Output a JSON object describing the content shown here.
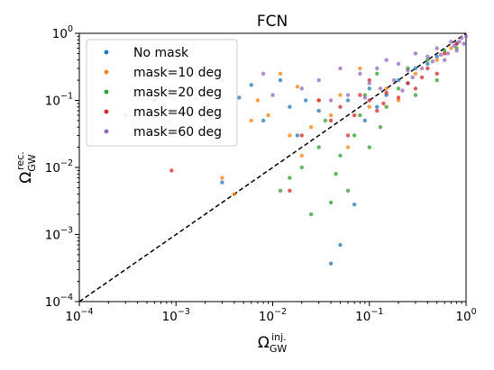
{
  "chart_data": {
    "type": "scatter",
    "title": "FCN",
    "xlabel": {
      "symbol": "Ω",
      "sub": "GW",
      "sup": "inj."
    },
    "ylabel": {
      "symbol": "Ω",
      "sub": "GW",
      "sup": "rec."
    },
    "xscale": "log",
    "yscale": "log",
    "xlim": [
      0.0001,
      1
    ],
    "ylim": [
      0.0001,
      1
    ],
    "grid": false,
    "legend_position": "top-left",
    "x_ticks": [
      {
        "base": "10",
        "exp": "−4"
      },
      {
        "base": "10",
        "exp": "−3"
      },
      {
        "base": "10",
        "exp": "−2"
      },
      {
        "base": "10",
        "exp": "−1"
      },
      {
        "base": "10",
        "exp": "0"
      }
    ],
    "y_ticks": [
      {
        "base": "10",
        "exp": "−4"
      },
      {
        "base": "10",
        "exp": "−3"
      },
      {
        "base": "10",
        "exp": "−2"
      },
      {
        "base": "10",
        "exp": "−1"
      },
      {
        "base": "10",
        "exp": "0"
      }
    ],
    "reference_line": {
      "style": "dashed",
      "color": "#000000",
      "points": [
        [
          0.0001,
          0.0001
        ],
        [
          1,
          1
        ]
      ]
    },
    "series": [
      {
        "name": "No mask",
        "color": "#1f77b4",
        "points": [
          [
            0.0006,
            0.1
          ],
          [
            0.003,
            0.006
          ],
          [
            0.0045,
            0.11
          ],
          [
            0.006,
            0.17
          ],
          [
            0.012,
            0.2
          ],
          [
            0.015,
            0.08
          ],
          [
            0.022,
            0.1
          ],
          [
            0.03,
            0.07
          ],
          [
            0.04,
            0.00037
          ],
          [
            0.05,
            0.0007
          ],
          [
            0.07,
            0.0028
          ],
          [
            0.09,
            0.05
          ],
          [
            0.12,
            0.08
          ],
          [
            0.15,
            0.12
          ],
          [
            0.2,
            0.2
          ],
          [
            0.3,
            0.3
          ],
          [
            0.5,
            0.45
          ],
          [
            0.8,
            0.7
          ],
          [
            0.25,
            0.18
          ],
          [
            0.4,
            0.35
          ],
          [
            0.06,
            0.1
          ],
          [
            0.1,
            0.15
          ],
          [
            0.018,
            0.03
          ],
          [
            0.008,
            0.05
          ]
        ]
      },
      {
        "name": "mask=10 deg",
        "color": "#ff7f0e",
        "points": [
          [
            0.0004,
            0.12
          ],
          [
            0.0012,
            0.03
          ],
          [
            0.002,
            0.05
          ],
          [
            0.003,
            0.007
          ],
          [
            0.004,
            0.004
          ],
          [
            0.006,
            0.05
          ],
          [
            0.009,
            0.06
          ],
          [
            0.012,
            0.25
          ],
          [
            0.015,
            0.03
          ],
          [
            0.02,
            0.015
          ],
          [
            0.025,
            0.04
          ],
          [
            0.03,
            0.1
          ],
          [
            0.04,
            0.06
          ],
          [
            0.05,
            0.12
          ],
          [
            0.06,
            0.02
          ],
          [
            0.08,
            0.3
          ],
          [
            0.1,
            0.08
          ],
          [
            0.15,
            0.15
          ],
          [
            0.2,
            0.1
          ],
          [
            0.3,
            0.25
          ],
          [
            0.5,
            0.4
          ],
          [
            0.7,
            0.6
          ],
          [
            0.018,
            0.16
          ],
          [
            0.007,
            0.1
          ]
        ]
      },
      {
        "name": "mask=20 deg",
        "color": "#2ca02c",
        "points": [
          [
            0.012,
            0.0045
          ],
          [
            0.015,
            0.007
          ],
          [
            0.02,
            0.01
          ],
          [
            0.025,
            0.002
          ],
          [
            0.03,
            0.02
          ],
          [
            0.035,
            0.05
          ],
          [
            0.04,
            0.003
          ],
          [
            0.05,
            0.015
          ],
          [
            0.06,
            0.0045
          ],
          [
            0.07,
            0.03
          ],
          [
            0.08,
            0.06
          ],
          [
            0.09,
            0.12
          ],
          [
            0.1,
            0.02
          ],
          [
            0.12,
            0.25
          ],
          [
            0.15,
            0.08
          ],
          [
            0.2,
            0.15
          ],
          [
            0.25,
            0.3
          ],
          [
            0.3,
            0.12
          ],
          [
            0.4,
            0.4
          ],
          [
            0.5,
            0.2
          ],
          [
            0.6,
            0.55
          ],
          [
            0.8,
            0.6
          ],
          [
            0.045,
            0.008
          ],
          [
            0.13,
            0.04
          ]
        ]
      },
      {
        "name": "mask=40 deg",
        "color": "#d62728",
        "points": [
          [
            0.0009,
            0.009
          ],
          [
            0.015,
            0.0045
          ],
          [
            0.02,
            0.03
          ],
          [
            0.03,
            0.1
          ],
          [
            0.04,
            0.05
          ],
          [
            0.05,
            0.08
          ],
          [
            0.06,
            0.03
          ],
          [
            0.08,
            0.12
          ],
          [
            0.1,
            0.1
          ],
          [
            0.12,
            0.07
          ],
          [
            0.15,
            0.13
          ],
          [
            0.2,
            0.11
          ],
          [
            0.25,
            0.18
          ],
          [
            0.3,
            0.15
          ],
          [
            0.4,
            0.3
          ],
          [
            0.5,
            0.25
          ],
          [
            0.6,
            0.5
          ],
          [
            0.8,
            0.7
          ],
          [
            0.14,
            0.09
          ],
          [
            0.1,
            0.2
          ],
          [
            0.07,
            0.06
          ],
          [
            0.35,
            0.22
          ]
        ]
      },
      {
        "name": "mask=60 deg",
        "color": "#9467bd",
        "points": [
          [
            0.0003,
            0.06
          ],
          [
            0.003,
            0.2
          ],
          [
            0.008,
            0.25
          ],
          [
            0.01,
            0.12
          ],
          [
            0.02,
            0.15
          ],
          [
            0.03,
            0.2
          ],
          [
            0.04,
            0.1
          ],
          [
            0.05,
            0.3
          ],
          [
            0.06,
            0.12
          ],
          [
            0.08,
            0.25
          ],
          [
            0.1,
            0.18
          ],
          [
            0.12,
            0.3
          ],
          [
            0.15,
            0.4
          ],
          [
            0.18,
            0.2
          ],
          [
            0.2,
            0.35
          ],
          [
            0.25,
            0.28
          ],
          [
            0.3,
            0.5
          ],
          [
            0.35,
            0.3
          ],
          [
            0.4,
            0.45
          ],
          [
            0.5,
            0.6
          ],
          [
            0.6,
            0.4
          ],
          [
            0.7,
            0.75
          ],
          [
            0.8,
            0.55
          ],
          [
            0.9,
            0.85
          ],
          [
            1.0,
            0.9
          ],
          [
            0.22,
            0.14
          ],
          [
            0.45,
            0.38
          ],
          [
            0.65,
            0.5
          ],
          [
            0.75,
            0.65
          ],
          [
            0.28,
            0.22
          ],
          [
            0.13,
            0.15
          ],
          [
            0.09,
            0.11
          ],
          [
            0.55,
            0.48
          ],
          [
            0.85,
            0.75
          ],
          [
            0.95,
            0.7
          ]
        ]
      }
    ]
  }
}
